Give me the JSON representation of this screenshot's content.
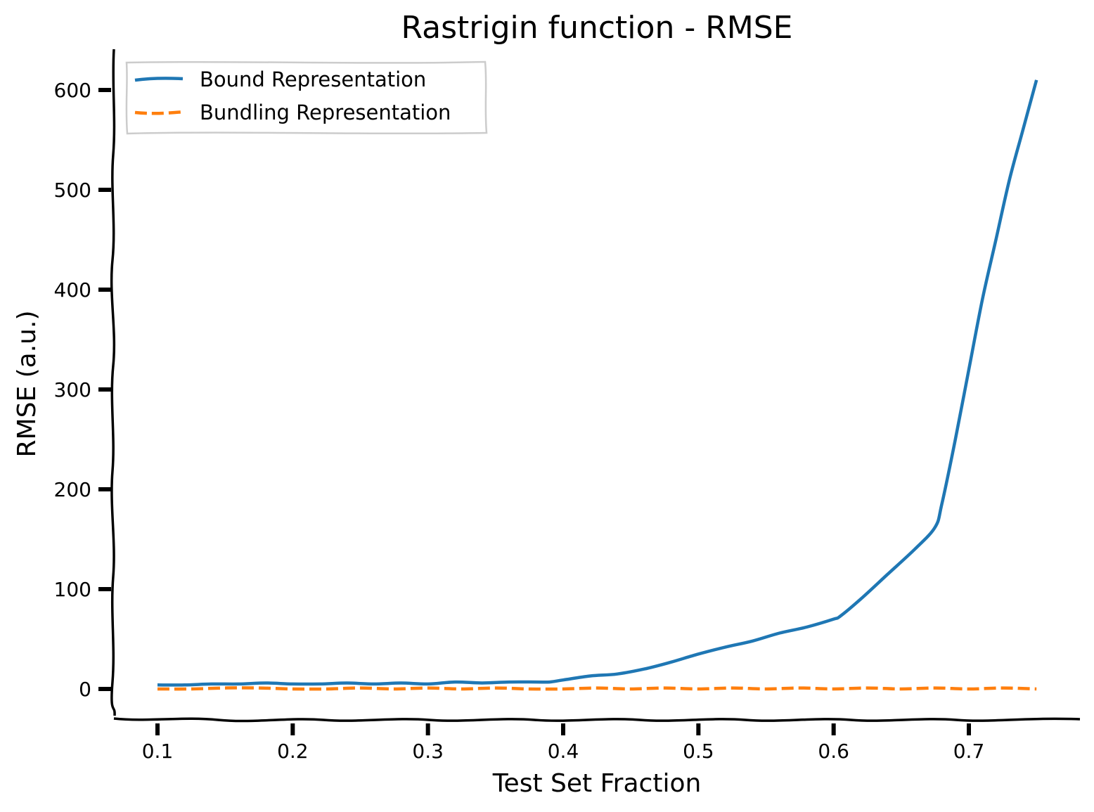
{
  "chart_data": {
    "type": "line",
    "title": "Rastrigin function - RMSE",
    "xlabel": "Test Set Fraction",
    "ylabel": "RMSE (a.u.)",
    "xlim": [
      0.07,
      0.78
    ],
    "ylim": [
      -30,
      640
    ],
    "xticks": [
      0.1,
      0.2,
      0.3,
      0.4,
      0.5,
      0.6,
      0.7
    ],
    "xtick_labels": [
      "0.1",
      "0.2",
      "0.3",
      "0.4",
      "0.5",
      "0.6",
      "0.7"
    ],
    "yticks": [
      0,
      100,
      200,
      300,
      400,
      500,
      600
    ],
    "ytick_labels": [
      "0",
      "100",
      "200",
      "300",
      "400",
      "500",
      "600"
    ],
    "grid": false,
    "legend_position": "top-left",
    "series": [
      {
        "name": "Bound Representation",
        "color": "#1f77b4",
        "style": "solid",
        "x": [
          0.1,
          0.12,
          0.14,
          0.16,
          0.18,
          0.2,
          0.22,
          0.24,
          0.26,
          0.28,
          0.3,
          0.32,
          0.34,
          0.36,
          0.38,
          0.39,
          0.4,
          0.42,
          0.44,
          0.46,
          0.48,
          0.5,
          0.52,
          0.54,
          0.56,
          0.58,
          0.6,
          0.605,
          0.62,
          0.64,
          0.66,
          0.675,
          0.68,
          0.69,
          0.7,
          0.71,
          0.72,
          0.73,
          0.74,
          0.75
        ],
        "y": [
          4,
          4,
          5,
          5,
          6,
          5,
          5,
          6,
          5,
          6,
          5,
          7,
          6,
          7,
          7,
          7,
          9,
          13,
          15,
          20,
          27,
          35,
          42,
          48,
          56,
          62,
          70,
          73,
          90,
          115,
          140,
          162,
          185,
          250,
          320,
          390,
          450,
          510,
          560,
          610
        ]
      },
      {
        "name": "Bundling Representation",
        "color": "#ff7f0e",
        "style": "dashed",
        "x": [
          0.1,
          0.125,
          0.15,
          0.175,
          0.2,
          0.225,
          0.25,
          0.275,
          0.3,
          0.325,
          0.35,
          0.375,
          0.4,
          0.425,
          0.45,
          0.475,
          0.5,
          0.525,
          0.55,
          0.575,
          0.6,
          0.625,
          0.65,
          0.675,
          0.7,
          0.725,
          0.75
        ],
        "y": [
          0,
          0,
          1,
          1,
          0,
          0,
          1,
          0,
          1,
          0,
          1,
          0,
          0,
          1,
          0,
          1,
          0,
          1,
          0,
          1,
          0,
          1,
          0,
          1,
          0,
          1,
          0
        ]
      }
    ]
  }
}
